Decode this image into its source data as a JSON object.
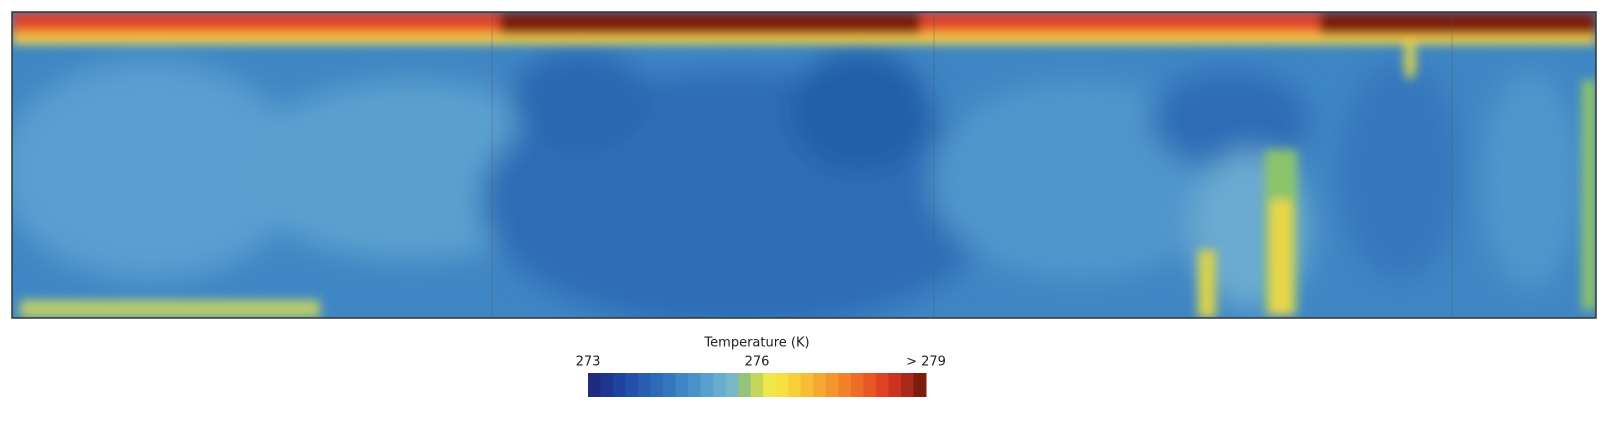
{
  "colorbar": {
    "title": "Temperature (K)",
    "range": [
      273,
      279
    ],
    "ticks": [
      273,
      276,
      {
        "value": 279,
        "label": "> 279"
      }
    ]
  }
}
